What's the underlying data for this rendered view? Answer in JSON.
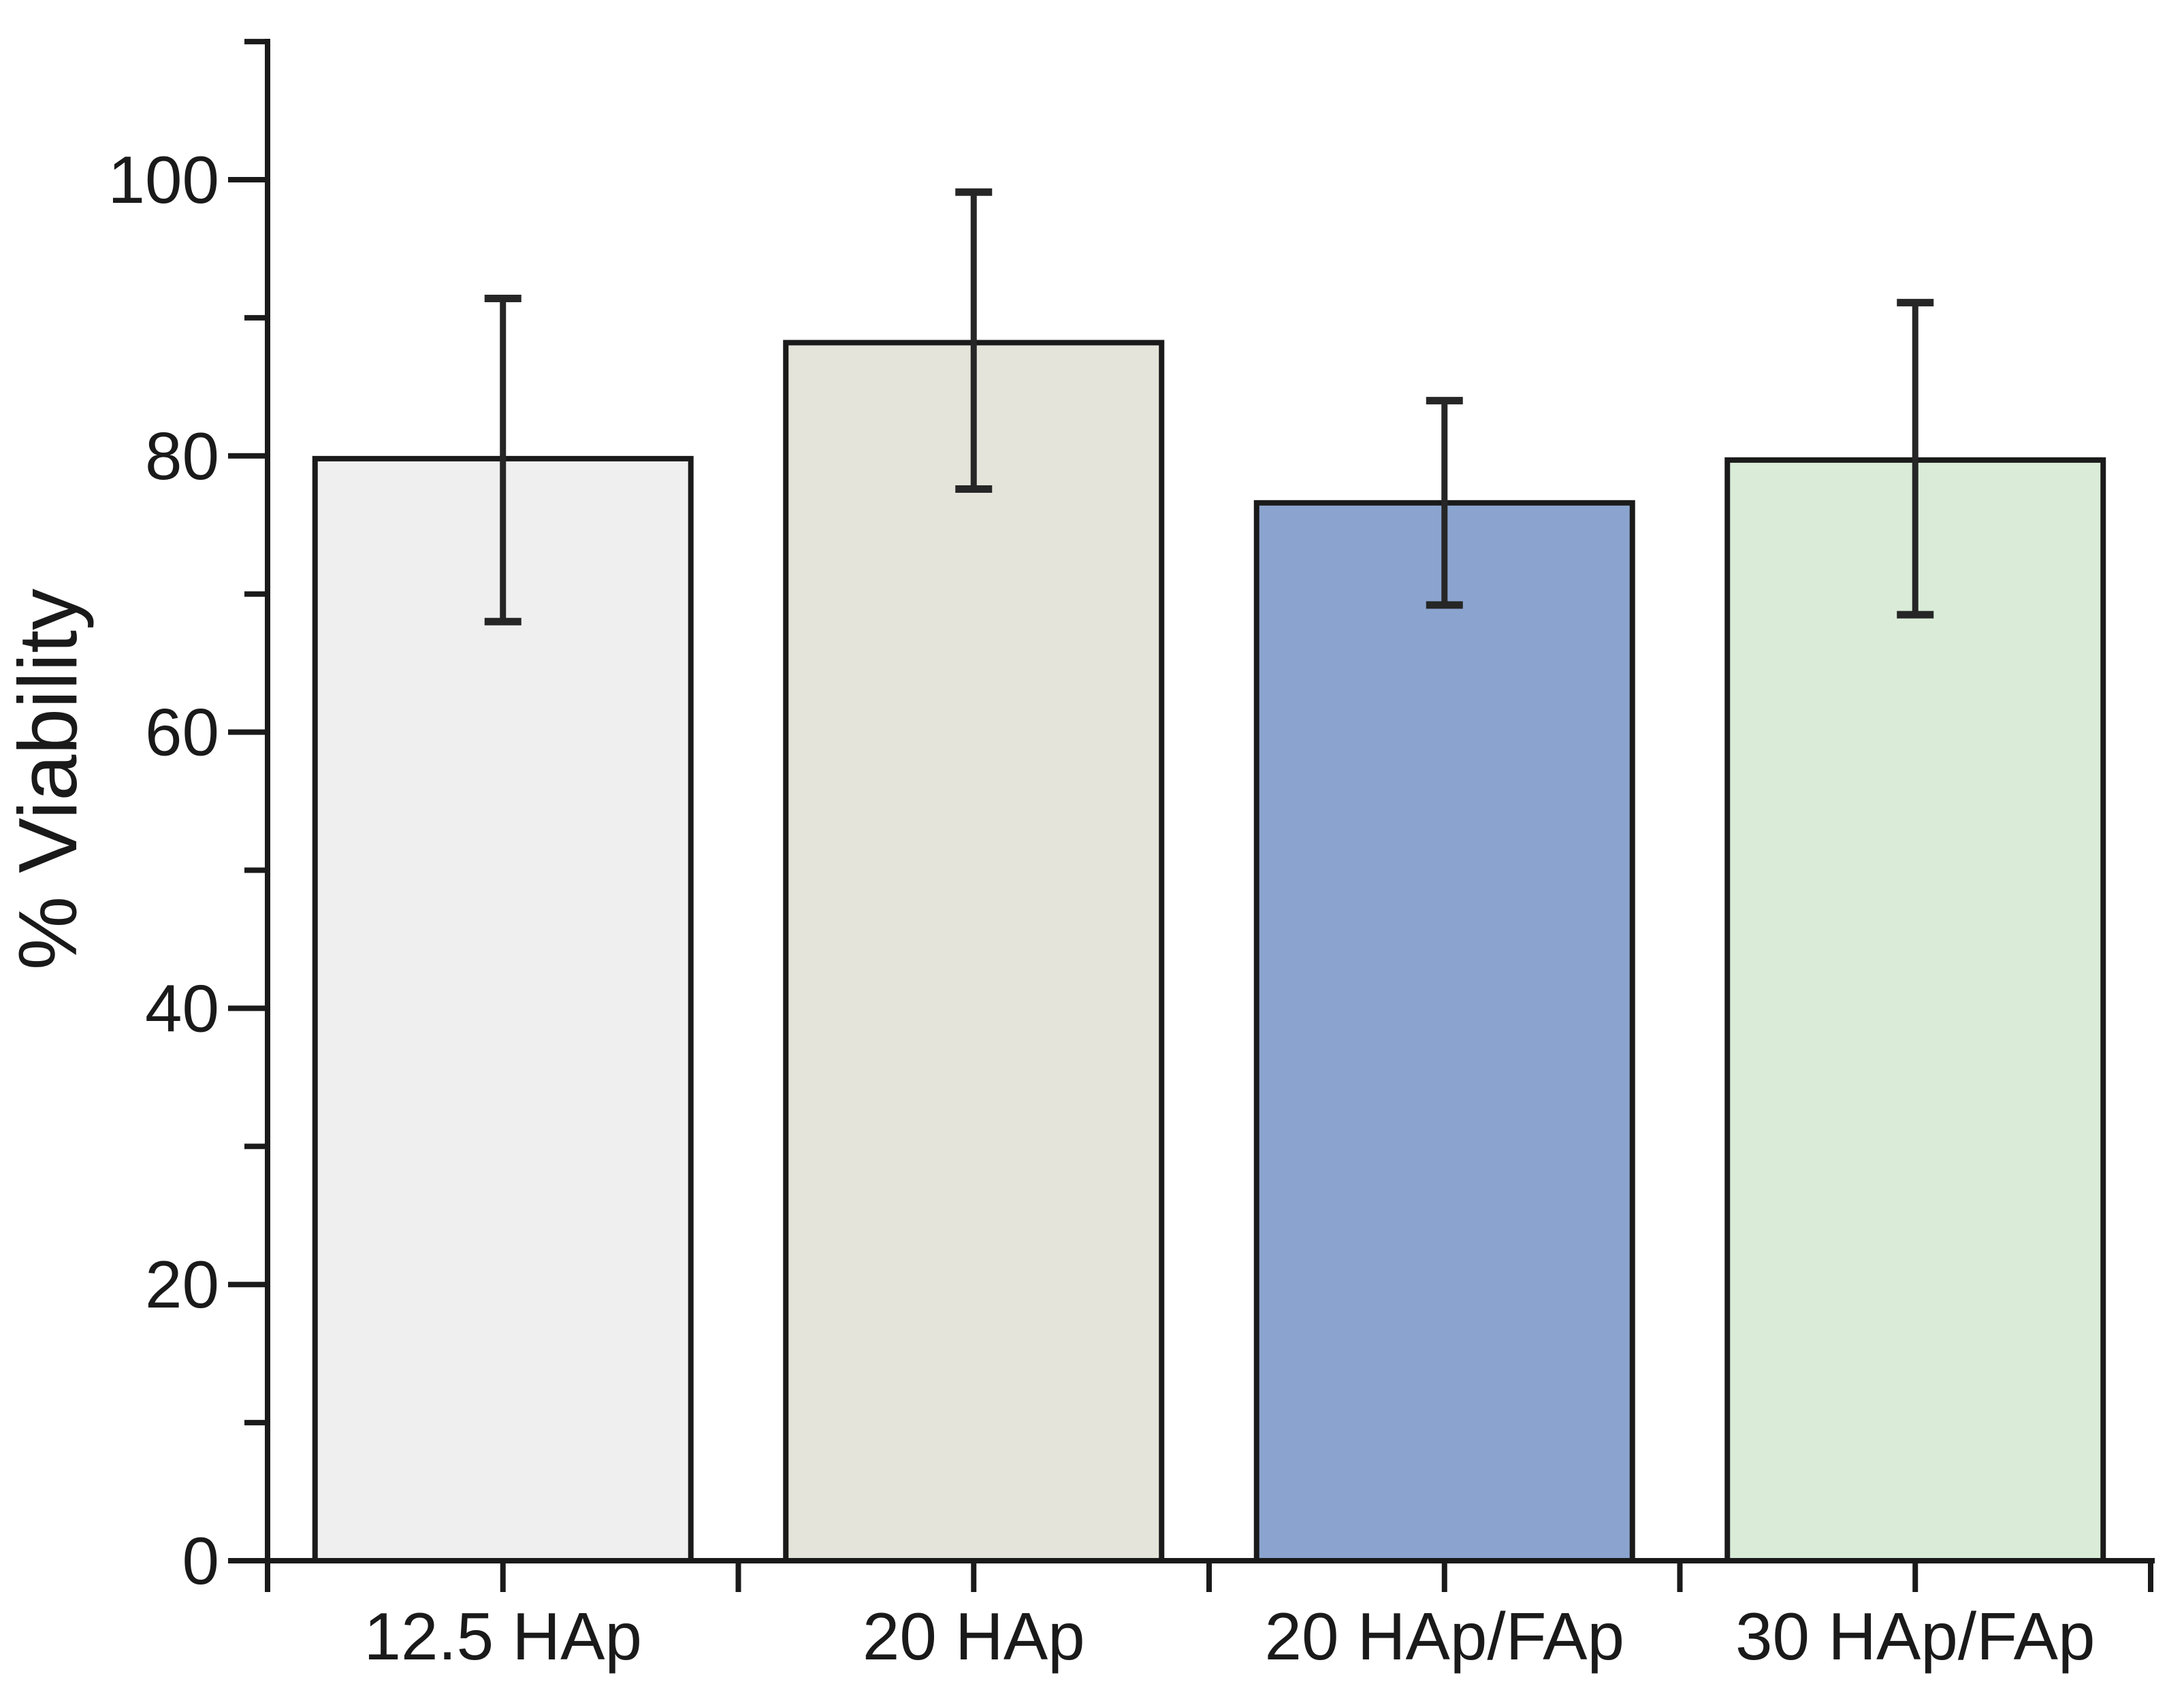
{
  "figure": {
    "background": "#ffffff"
  },
  "chart_data": {
    "type": "bar",
    "title": "",
    "xlabel": "",
    "ylabel": "% Viability",
    "categories": [
      "12.5 HAp",
      "20 HAp",
      "20 HAp/FAp",
      "30 HAp/FAp"
    ],
    "values": [
      79.8,
      88.2,
      76.6,
      79.7
    ],
    "errors_up": [
      11.6,
      10.9,
      7.4,
      11.4
    ],
    "errors_down": [
      11.8,
      10.6,
      7.4,
      11.2
    ],
    "bar_colors": [
      "#efefef",
      "#e5e4da",
      "#8ba4cf",
      "#daecd8"
    ],
    "bar_border_color": "#1a1a1a",
    "error_bar_color": "#262626",
    "axis_color": "#1a1a1a",
    "text_color": "#1a1a1a",
    "ylim": [
      0,
      110
    ],
    "ytick_values": [
      0,
      20,
      40,
      60,
      80,
      100
    ],
    "ytick_labels": [
      "0",
      "20",
      "40",
      "60",
      "80",
      "100"
    ],
    "yminor_values": [
      10,
      30,
      50,
      70,
      90,
      110
    ],
    "grid": false,
    "legend": false
  }
}
